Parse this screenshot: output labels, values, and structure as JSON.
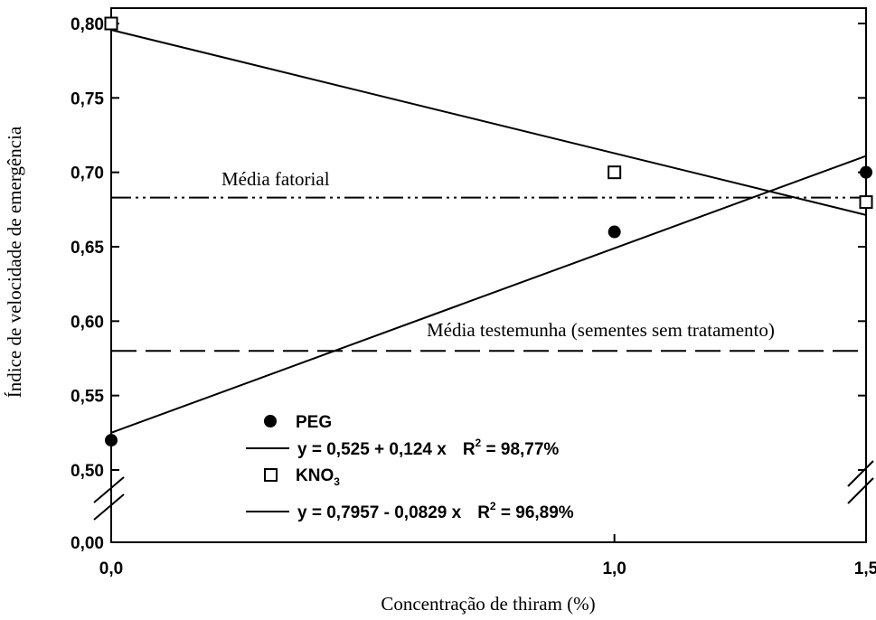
{
  "chart_data": {
    "type": "scatter",
    "xlabel": "Concentração de thiram (%)",
    "ylabel": "Índice de velocidade de emergência",
    "x_ticks": [
      "0,0",
      "1,0",
      "1,5"
    ],
    "y_ticks": [
      "0,00",
      "0,50",
      "0,55",
      "0,60",
      "0,65",
      "0,70",
      "0,75",
      "0,80"
    ],
    "ylim": [
      0.5,
      0.8
    ],
    "y_axis_break": true,
    "series": [
      {
        "name": "PEG",
        "marker": "filled-circle",
        "x": [
          0.0,
          1.0,
          1.5
        ],
        "y": [
          0.52,
          0.66,
          0.7
        ],
        "fit": {
          "intercept": 0.525,
          "slope": 0.124,
          "equation": "y = 0,525 + 0,124 x",
          "r2_prefix": "R",
          "r2_sup": "2",
          "r2_value": " = 98,77%"
        }
      },
      {
        "name_main": "KNO",
        "name_sub": "3",
        "marker": "open-square",
        "x": [
          0.0,
          1.0,
          1.5
        ],
        "y": [
          0.8,
          0.7,
          0.68
        ],
        "fit": {
          "intercept": 0.7957,
          "slope": -0.0829,
          "equation": "y = 0,7957 - 0,0829 x",
          "r2_prefix": "R",
          "r2_sup": "2",
          "r2_value": " = 96,89%"
        }
      }
    ],
    "reference_lines": [
      {
        "label": "Média fatorial",
        "y": 0.683,
        "style": "dash-dot-dot"
      },
      {
        "label": "Média testemunha (sementes sem tratamento)",
        "y": 0.58,
        "style": "dashed"
      }
    ],
    "legend_position": "bottom-center"
  }
}
